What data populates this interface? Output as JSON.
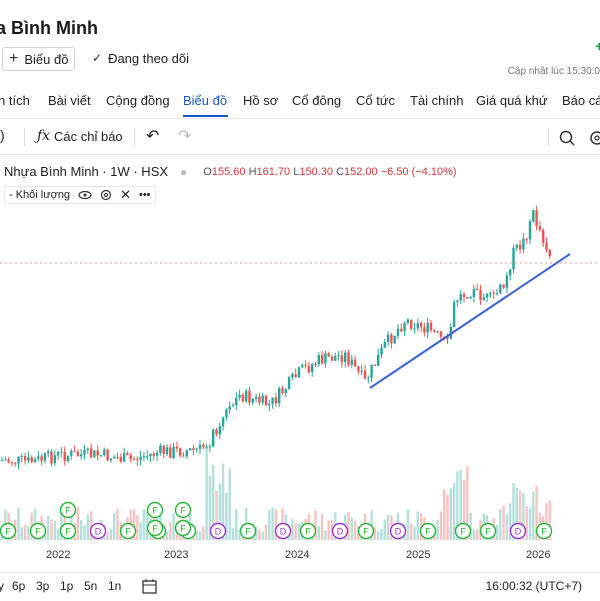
{
  "header": {
    "stock_name": "a Bình Minh",
    "price_change": "+(",
    "chart_button_label": "Biểu đồ",
    "follow_label": "Đang theo dõi",
    "updated_label": "Cập nhật lúc  15:30:0"
  },
  "tabs": [
    {
      "label": "n tích"
    },
    {
      "label": "Bài viết"
    },
    {
      "label": "Cộng đồng"
    },
    {
      "label": "Biểu đồ",
      "active": true
    },
    {
      "label": "Hồ sơ"
    },
    {
      "label": "Cổ đông"
    },
    {
      "label": "Cổ tức"
    },
    {
      "label": "Tài chính"
    },
    {
      "label": "Giá quá khứ"
    },
    {
      "label": "Báo các"
    }
  ],
  "toolbar": {
    "indicators_label": "Các chỉ báo",
    "fx_icon": "ƒx"
  },
  "legend": {
    "title": "Nhựa Bình Minh · 1W · HSX",
    "open_label": "O",
    "open": "155.60",
    "high_label": "H",
    "high": "161.70",
    "low_label": "L",
    "low": "150.30",
    "close_label": "C",
    "close": "152.00",
    "change": "−6.50 (−4.10%)",
    "volume_label": "- Khối lượng"
  },
  "chart_data": {
    "type": "candlestick",
    "x_ticks": [
      "2022",
      "2023",
      "2024",
      "2025",
      "2026"
    ],
    "trendline": "rising support line (blue)",
    "event_markers": [
      "F",
      "D"
    ],
    "colors": {
      "up": "#26a69a",
      "down": "#ef5350",
      "trendline": "#3b63d9",
      "marker_f": "#27b536",
      "marker_d": "#9b35c8"
    }
  },
  "bottom_bar": {
    "ranges": [
      "y",
      "6p",
      "3p",
      "1p",
      "5n",
      "1n"
    ],
    "clock": "16:00:32 (UTC+7)"
  }
}
